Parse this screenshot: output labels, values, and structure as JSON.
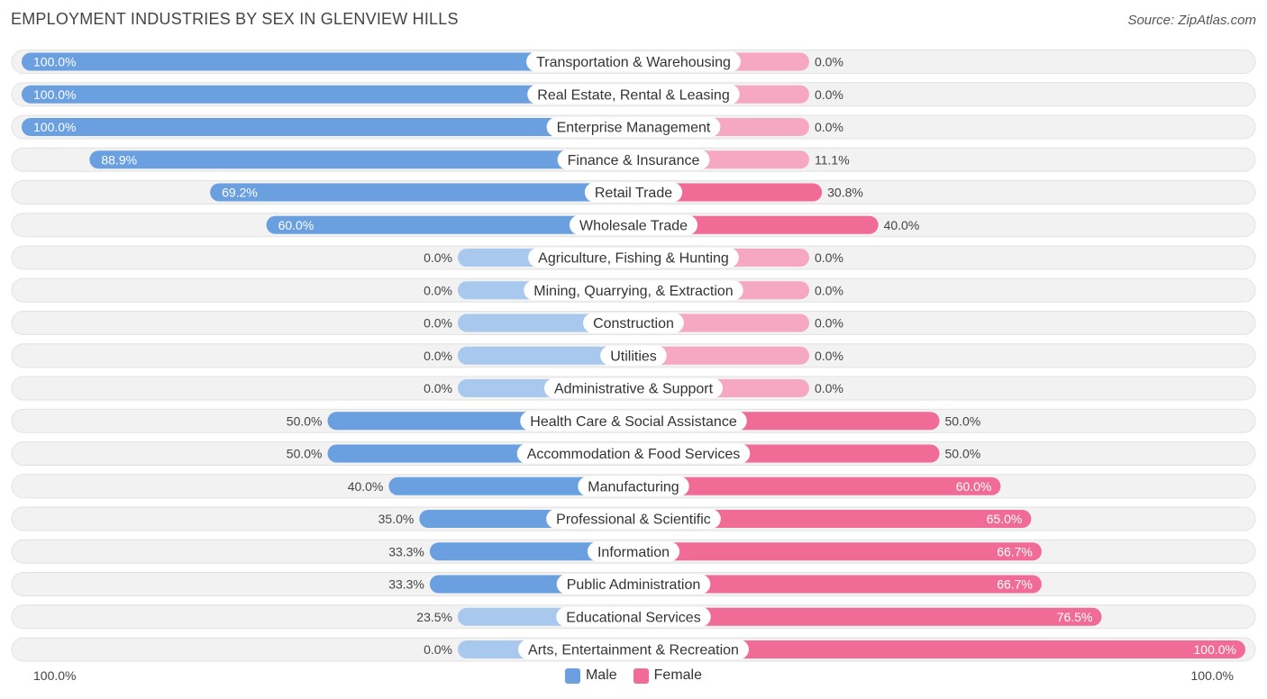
{
  "header": {
    "title": "EMPLOYMENT INDUSTRIES BY SEX IN GLENVIEW HILLS",
    "source": "Source: ZipAtlas.com"
  },
  "axis": {
    "left_label": "100.0%",
    "right_label": "100.0%"
  },
  "legend": {
    "male_label": "Male",
    "female_label": "Female"
  },
  "colors": {
    "male_strong": "#6a9fe0",
    "male_light": "#a9c8ee",
    "female_strong": "#f06b96",
    "female_light": "#f6a8c3",
    "track": "#f2f2f2"
  },
  "chart_data": {
    "type": "bar",
    "orientation": "horizontal-diverging",
    "title": "EMPLOYMENT INDUSTRIES BY SEX IN GLENVIEW HILLS",
    "xlim": [
      -100,
      100
    ],
    "categories": [
      "Transportation & Warehousing",
      "Real Estate, Rental & Leasing",
      "Enterprise Management",
      "Finance & Insurance",
      "Retail Trade",
      "Wholesale Trade",
      "Agriculture, Fishing & Hunting",
      "Mining, Quarrying, & Extraction",
      "Construction",
      "Utilities",
      "Administrative & Support",
      "Health Care & Social Assistance",
      "Accommodation & Food Services",
      "Manufacturing",
      "Professional & Scientific",
      "Information",
      "Public Administration",
      "Educational Services",
      "Arts, Entertainment & Recreation"
    ],
    "series": [
      {
        "name": "Male",
        "values": [
          100.0,
          100.0,
          100.0,
          88.9,
          69.2,
          60.0,
          0.0,
          0.0,
          0.0,
          0.0,
          0.0,
          50.0,
          50.0,
          40.0,
          35.0,
          33.3,
          33.3,
          23.5,
          0.0
        ],
        "labels": [
          "100.0%",
          "100.0%",
          "100.0%",
          "88.9%",
          "69.2%",
          "60.0%",
          "0.0%",
          "0.0%",
          "0.0%",
          "0.0%",
          "0.0%",
          "50.0%",
          "50.0%",
          "40.0%",
          "35.0%",
          "33.3%",
          "33.3%",
          "23.5%",
          "0.0%"
        ]
      },
      {
        "name": "Female",
        "values": [
          0.0,
          0.0,
          0.0,
          11.1,
          30.8,
          40.0,
          0.0,
          0.0,
          0.0,
          0.0,
          0.0,
          50.0,
          50.0,
          60.0,
          65.0,
          66.7,
          66.7,
          76.5,
          100.0
        ],
        "labels": [
          "0.0%",
          "0.0%",
          "0.0%",
          "11.1%",
          "30.8%",
          "40.0%",
          "0.0%",
          "0.0%",
          "0.0%",
          "0.0%",
          "0.0%",
          "50.0%",
          "50.0%",
          "60.0%",
          "65.0%",
          "66.7%",
          "66.7%",
          "76.5%",
          "100.0%"
        ]
      }
    ],
    "legend_position": "bottom-center"
  }
}
